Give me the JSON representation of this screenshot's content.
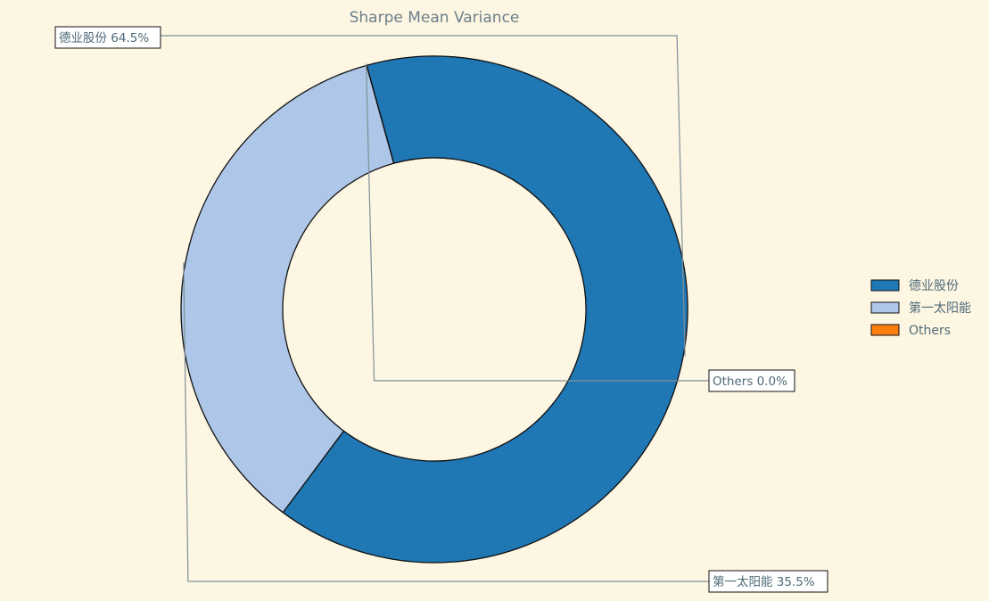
{
  "chart_data": {
    "type": "pie",
    "style": "donut",
    "title": "Sharpe Mean Variance",
    "legend_position": "right",
    "slices": [
      {
        "label": "德业股份",
        "value": 64.5,
        "display": "德业股份 64.5%",
        "color": "#1f77b4"
      },
      {
        "label": "第一太阳能",
        "value": 35.5,
        "display": "第一太阳能 35.5%",
        "color": "#aec7e8"
      },
      {
        "label": "Others",
        "value": 0.0,
        "display": "Others 0.0%",
        "color": "#ff7f0e"
      }
    ]
  }
}
